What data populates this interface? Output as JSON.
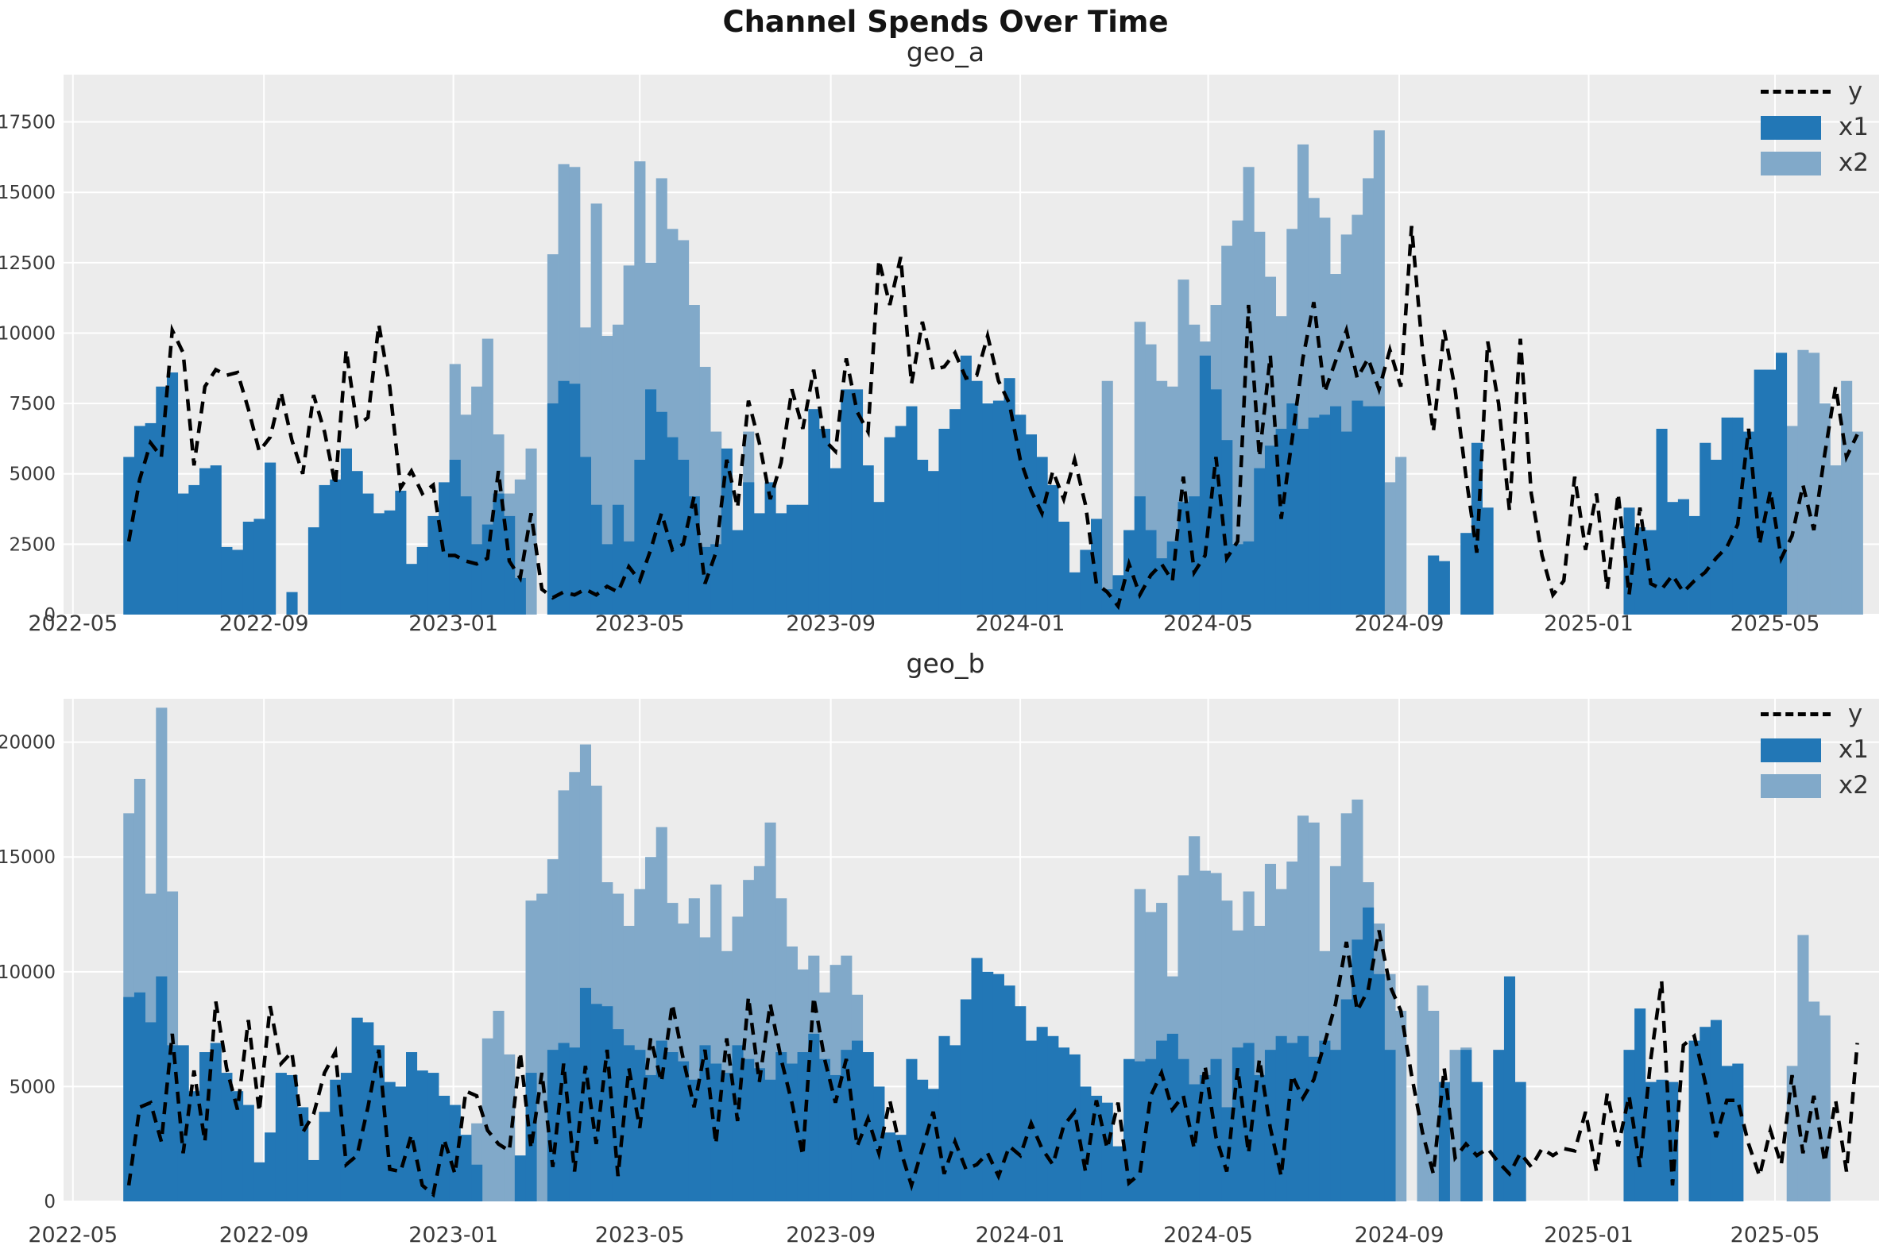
{
  "title": "Channel Spends Over Time",
  "colors": {
    "x1": "#2277b6",
    "x2": "#81a9c9",
    "y_line": "#000000",
    "plot_bg": "#ececec",
    "grid": "#ffffff",
    "tick_label": "#3a3a3a"
  },
  "legend": {
    "entries": [
      {
        "label": "y",
        "type": "dashed-line"
      },
      {
        "label": "x1",
        "type": "swatch"
      },
      {
        "label": "x2",
        "type": "swatch"
      }
    ]
  },
  "x_axis": {
    "start_date": "2022-06-06",
    "step_days": 7,
    "domain": [
      "2022-04-25",
      "2025-07-07"
    ],
    "ticks": [
      {
        "date": "2022-05-01",
        "label": "2022-05"
      },
      {
        "date": "2022-09-01",
        "label": "2022-09"
      },
      {
        "date": "2023-01-01",
        "label": "2023-01"
      },
      {
        "date": "2023-05-01",
        "label": "2023-05"
      },
      {
        "date": "2023-09-01",
        "label": "2023-09"
      },
      {
        "date": "2024-01-01",
        "label": "2024-01"
      },
      {
        "date": "2024-05-01",
        "label": "2024-05"
      },
      {
        "date": "2024-09-01",
        "label": "2024-09"
      },
      {
        "date": "2025-01-01",
        "label": "2025-01"
      },
      {
        "date": "2025-05-01",
        "label": "2025-05"
      }
    ]
  },
  "chart_data": [
    {
      "type": "bar",
      "id": "geo_a",
      "title": "geo_a",
      "ylim": [
        0,
        19180
      ],
      "yticks": [
        0,
        2500,
        5000,
        7500,
        10000,
        12500,
        15000,
        17500
      ],
      "grid": true,
      "legend_position": "upper right",
      "x_weekly_start": "2022-06-06",
      "series": [
        {
          "name": "x2",
          "type": "bar",
          "values": [
            0,
            0,
            0,
            0,
            0,
            0,
            0,
            0,
            0,
            0,
            0,
            0,
            0,
            0,
            0,
            0,
            0,
            0,
            0,
            0,
            0,
            0,
            0,
            0,
            0,
            0,
            0,
            0,
            0,
            0,
            8900,
            7100,
            8100,
            9800,
            6400,
            4300,
            4800,
            5900,
            0,
            12800,
            16000,
            15900,
            10200,
            14600,
            9900,
            10300,
            12400,
            16100,
            12500,
            15500,
            13700,
            13300,
            11000,
            8800,
            6500,
            3000,
            0,
            6500,
            0,
            0,
            0,
            0,
            0,
            0,
            0,
            0,
            0,
            0,
            0,
            0,
            0,
            0,
            0,
            0,
            0,
            0,
            0,
            0,
            0,
            0,
            0,
            0,
            0,
            0,
            0,
            0,
            0,
            0,
            0,
            0,
            8300,
            0,
            0,
            10400,
            9600,
            8300,
            8100,
            11900,
            10300,
            9700,
            11000,
            13100,
            14000,
            15900,
            13600,
            12000,
            10600,
            13700,
            16700,
            14800,
            14100,
            12100,
            13500,
            14200,
            15500,
            17200,
            4700,
            5600,
            0,
            0,
            0,
            0,
            0,
            0,
            0,
            0,
            0,
            0,
            0,
            0,
            0,
            0,
            0,
            0,
            0,
            0,
            0,
            0,
            0,
            0,
            0,
            0,
            0,
            0,
            0,
            0,
            0,
            0,
            0,
            0,
            0,
            0,
            0,
            6700,
            9400,
            9300,
            7500,
            5300,
            8300,
            6500
          ]
        },
        {
          "name": "x1",
          "type": "bar",
          "values": [
            5600,
            6700,
            6800,
            8100,
            8600,
            4300,
            4600,
            5200,
            5300,
            2400,
            2300,
            3300,
            3400,
            5400,
            0,
            800,
            0,
            3100,
            4600,
            4800,
            5900,
            5100,
            4300,
            3600,
            3700,
            4400,
            1800,
            2400,
            3500,
            4700,
            5500,
            4200,
            2500,
            3200,
            4300,
            3500,
            1300,
            0,
            0,
            7500,
            8300,
            8200,
            5600,
            3900,
            2500,
            3900,
            2600,
            5500,
            8000,
            7200,
            6300,
            5500,
            4200,
            2400,
            2500,
            5900,
            3000,
            4700,
            3600,
            4700,
            3600,
            3900,
            3900,
            7300,
            6600,
            5200,
            8000,
            8000,
            5300,
            4000,
            6300,
            6700,
            7400,
            5500,
            5100,
            6600,
            7300,
            9200,
            8300,
            7500,
            7600,
            8400,
            7100,
            6400,
            5600,
            4600,
            3300,
            1500,
            2300,
            3400,
            900,
            1400,
            3000,
            4200,
            3000,
            2000,
            2600,
            4000,
            4200,
            9200,
            8000,
            6200,
            2500,
            2600,
            5200,
            6000,
            6600,
            7500,
            6600,
            7000,
            7100,
            7400,
            6500,
            7600,
            7400,
            7400,
            0,
            0,
            0,
            0,
            2100,
            1900,
            0,
            2900,
            6100,
            3800,
            0,
            0,
            0,
            0,
            0,
            0,
            0,
            0,
            0,
            0,
            0,
            0,
            3800,
            3100,
            3000,
            6600,
            4000,
            4100,
            3500,
            6100,
            5500,
            7000,
            7000,
            6500,
            8700,
            8700,
            9300,
            0,
            0,
            0,
            0,
            0,
            0,
            0
          ]
        },
        {
          "name": "y",
          "type": "line",
          "values": [
            2600,
            4800,
            6100,
            5600,
            10100,
            9300,
            5300,
            8100,
            8700,
            8500,
            8600,
            7300,
            5800,
            6300,
            7900,
            6200,
            5000,
            7800,
            6500,
            4600,
            9400,
            6700,
            7000,
            10300,
            8100,
            4500,
            5100,
            4300,
            4600,
            2100,
            2100,
            1900,
            1800,
            2000,
            5100,
            1900,
            1300,
            3600,
            900,
            600,
            800,
            700,
            900,
            700,
            1000,
            800,
            1700,
            1200,
            2300,
            3600,
            2300,
            2500,
            4200,
            1100,
            2200,
            5500,
            3800,
            7600,
            6100,
            4100,
            5400,
            8000,
            6600,
            8700,
            6200,
            5800,
            9100,
            7200,
            6500,
            12600,
            11000,
            12700,
            8200,
            10400,
            8700,
            8800,
            9300,
            8400,
            8500,
            9900,
            8300,
            7500,
            5500,
            4400,
            3600,
            5100,
            4100,
            5500,
            3900,
            1100,
            800,
            300,
            1800,
            700,
            1400,
            1800,
            1200,
            4900,
            1500,
            2100,
            5600,
            2000,
            2600,
            11000,
            5600,
            9200,
            3400,
            6200,
            9100,
            11100,
            7900,
            9000,
            10100,
            8400,
            9100,
            8000,
            9400,
            8100,
            13800,
            9400,
            6500,
            10100,
            8000,
            4900,
            2200,
            9700,
            7500,
            3700,
            9800,
            4300,
            2100,
            700,
            1200,
            4900,
            2300,
            4300,
            900,
            4300,
            700,
            3800,
            1100,
            900,
            1400,
            800,
            1200,
            1500,
            2000,
            2400,
            3200,
            6600,
            2500,
            4400,
            2000,
            2800,
            4600,
            3000,
            5700,
            8100,
            5600,
            6400
          ]
        }
      ]
    },
    {
      "type": "bar",
      "id": "geo_b",
      "title": "geo_b",
      "ylim": [
        0,
        21890
      ],
      "yticks": [
        0,
        5000,
        10000,
        15000,
        20000
      ],
      "grid": true,
      "legend_position": "upper right",
      "x_weekly_start": "2022-06-06",
      "series": [
        {
          "name": "x2",
          "type": "bar",
          "values": [
            16900,
            18400,
            13400,
            21500,
            13500,
            0,
            0,
            0,
            0,
            0,
            0,
            0,
            0,
            0,
            0,
            0,
            0,
            0,
            0,
            0,
            0,
            0,
            0,
            0,
            0,
            0,
            0,
            0,
            0,
            0,
            0,
            0,
            3400,
            7100,
            8300,
            6400,
            0,
            13100,
            13400,
            14900,
            17900,
            18700,
            19900,
            18100,
            13900,
            13400,
            12000,
            13600,
            15000,
            16300,
            13000,
            12100,
            13200,
            11500,
            13800,
            10900,
            12400,
            14000,
            14600,
            16500,
            13200,
            11100,
            10100,
            10700,
            9100,
            10300,
            10700,
            9000,
            0,
            0,
            0,
            0,
            0,
            0,
            0,
            0,
            0,
            0,
            0,
            0,
            0,
            0,
            0,
            0,
            0,
            0,
            0,
            0,
            0,
            0,
            0,
            0,
            0,
            13600,
            12600,
            13000,
            9800,
            14200,
            15900,
            14400,
            14300,
            13100,
            11800,
            13500,
            12000,
            14700,
            13600,
            14800,
            16800,
            16500,
            10900,
            14600,
            16900,
            17500,
            13900,
            12100,
            9900,
            8300,
            0,
            9400,
            8300,
            0,
            6600,
            6700,
            0,
            0,
            0,
            0,
            0,
            0,
            0,
            0,
            0,
            0,
            0,
            0,
            0,
            0,
            0,
            0,
            0,
            0,
            0,
            0,
            0,
            0,
            0,
            0,
            0,
            0,
            0,
            0,
            0,
            5900,
            11600,
            8700,
            8100,
            0,
            0,
            0
          ]
        },
        {
          "name": "x1",
          "type": "bar",
          "values": [
            8900,
            9100,
            7800,
            9800,
            6800,
            6800,
            4800,
            6500,
            6900,
            5600,
            4800,
            4200,
            1700,
            3000,
            5600,
            5500,
            4100,
            1800,
            3900,
            5300,
            5600,
            8000,
            7800,
            6800,
            5200,
            5000,
            6500,
            5700,
            5600,
            4600,
            4200,
            2900,
            1600,
            0,
            0,
            0,
            2000,
            5600,
            0,
            6600,
            6900,
            6700,
            9300,
            8600,
            8500,
            7500,
            6800,
            6600,
            5500,
            7000,
            6500,
            6100,
            5300,
            6800,
            6000,
            5600,
            6800,
            6200,
            5800,
            5300,
            6500,
            6000,
            6500,
            7300,
            6200,
            5500,
            6600,
            7000,
            6500,
            5000,
            3000,
            2900,
            6200,
            5300,
            4900,
            7200,
            6800,
            8800,
            10600,
            10000,
            9900,
            9400,
            8500,
            7000,
            7600,
            7200,
            6700,
            6400,
            5000,
            4600,
            4300,
            2400,
            6200,
            6100,
            6200,
            7000,
            7300,
            6200,
            5100,
            5500,
            6200,
            4100,
            6700,
            6900,
            5500,
            6600,
            7200,
            6900,
            7200,
            6300,
            7000,
            6600,
            8800,
            11400,
            12800,
            9900,
            6600,
            0,
            0,
            0,
            0,
            5200,
            0,
            6600,
            5200,
            0,
            6600,
            9800,
            5200,
            0,
            0,
            0,
            0,
            0,
            0,
            0,
            0,
            0,
            6600,
            8400,
            5200,
            5300,
            5200,
            0,
            7000,
            7600,
            7900,
            5900,
            6000,
            0,
            0,
            0,
            0,
            0,
            0,
            0,
            0,
            0,
            0,
            0
          ]
        },
        {
          "name": "y",
          "type": "line",
          "values": [
            700,
            4100,
            4300,
            2600,
            7300,
            2100,
            5700,
            2600,
            8700,
            5800,
            4000,
            7900,
            3900,
            8500,
            6000,
            6500,
            3000,
            3800,
            5600,
            6500,
            1600,
            2000,
            4100,
            6600,
            1400,
            1300,
            2900,
            700,
            300,
            2700,
            1200,
            4800,
            4600,
            3100,
            2500,
            2200,
            6500,
            2300,
            5600,
            1500,
            6000,
            1300,
            5900,
            2500,
            6600,
            1100,
            5800,
            3200,
            7100,
            5200,
            8600,
            6200,
            4100,
            6600,
            2500,
            7100,
            3500,
            8900,
            5200,
            8600,
            6200,
            4300,
            2000,
            8900,
            6200,
            4300,
            6200,
            2400,
            3600,
            2100,
            4400,
            2200,
            700,
            2300,
            3900,
            1200,
            2600,
            1400,
            1600,
            2100,
            1100,
            2400,
            2000,
            3400,
            2300,
            1600,
            3300,
            3900,
            1300,
            4400,
            2300,
            4300,
            800,
            1200,
            4600,
            5600,
            4000,
            4600,
            2300,
            5900,
            2800,
            1300,
            5800,
            2100,
            6200,
            3200,
            1100,
            5500,
            4500,
            5300,
            6900,
            8600,
            11300,
            8300,
            9200,
            11800,
            9400,
            8300,
            5500,
            3000,
            1200,
            5800,
            1900,
            2500,
            2000,
            2300,
            1700,
            1200,
            2100,
            1500,
            2300,
            2000,
            2300,
            2200,
            3900,
            1300,
            4700,
            2400,
            4600,
            1500,
            6200,
            9600,
            700,
            6800,
            7200,
            5200,
            2800,
            4400,
            4400,
            2500,
            1100,
            3100,
            1600,
            5500,
            2100,
            4600,
            1700,
            4400,
            1300,
            6900
          ]
        }
      ]
    }
  ]
}
